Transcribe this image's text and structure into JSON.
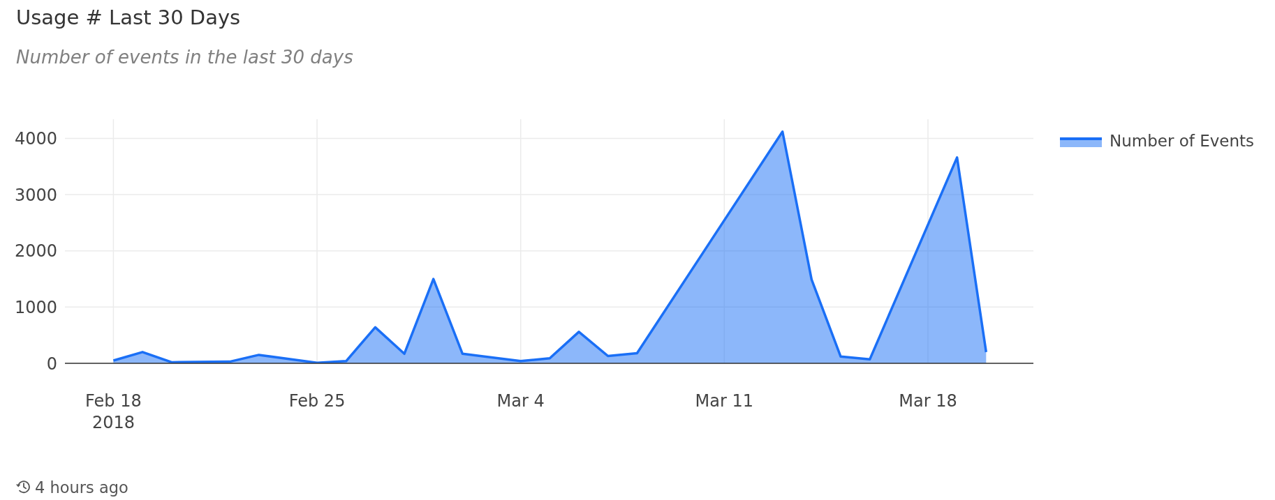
{
  "chart_data": {
    "type": "area",
    "title": "Usage # Last 30 Days",
    "subtitle": "Number of events in the last 30 days",
    "annotations": [
      "4 hours ago"
    ],
    "series": [
      {
        "name": "Number of Events",
        "color": "#1a6ff6",
        "x": [
          "2018-02-18",
          "2018-02-19",
          "2018-02-20",
          "2018-02-22",
          "2018-02-23",
          "2018-02-25",
          "2018-02-26",
          "2018-02-27",
          "2018-02-28",
          "2018-03-01",
          "2018-03-02",
          "2018-03-04",
          "2018-03-05",
          "2018-03-06",
          "2018-03-07",
          "2018-03-08",
          "2018-03-13",
          "2018-03-14",
          "2018-03-15",
          "2018-03-16",
          "2018-03-19",
          "2018-03-20"
        ],
        "values": [
          50,
          200,
          20,
          30,
          150,
          10,
          40,
          640,
          170,
          1500,
          170,
          40,
          90,
          560,
          130,
          180,
          4120,
          1490,
          120,
          70,
          3660,
          200
        ]
      }
    ],
    "xlim": [
      "2018-02-16T08:00",
      "2018-03-21T15:00"
    ],
    "xticks": [
      {
        "value": "2018-02-18",
        "label": "Feb 18\n2018"
      },
      {
        "value": "2018-02-25",
        "label": "Feb 25"
      },
      {
        "value": "2018-03-04",
        "label": "Mar 4"
      },
      {
        "value": "2018-03-11",
        "label": "Mar 11"
      },
      {
        "value": "2018-03-18",
        "label": "Mar 18"
      }
    ],
    "ylim": [
      0,
      4340
    ],
    "yticks": [
      0,
      1000,
      2000,
      3000,
      4000
    ],
    "grid": true,
    "legend": "top right"
  }
}
